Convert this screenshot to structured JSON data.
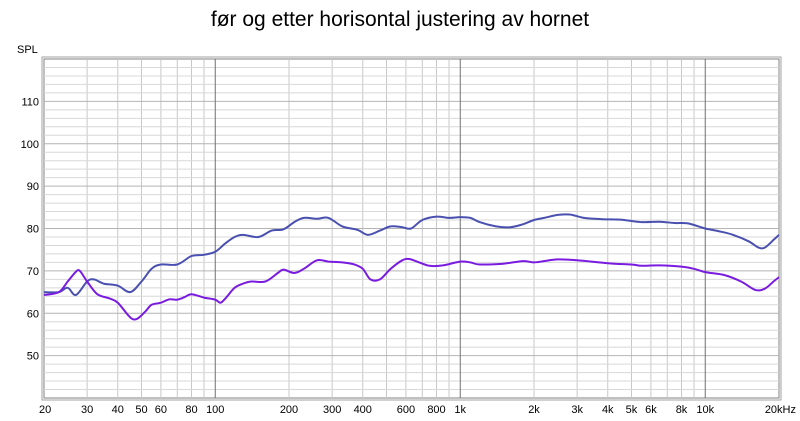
{
  "chart_data": {
    "type": "line",
    "title": "før og etter horisontal justering av hornet",
    "ylabel": "SPL",
    "xlabel": "",
    "xscale": "log",
    "xlim": [
      20,
      20000
    ],
    "ylim": [
      40,
      120
    ],
    "grid": true,
    "legend": "none",
    "x_ticks": [
      {
        "value": 20,
        "label": "20"
      },
      {
        "value": 30,
        "label": "30"
      },
      {
        "value": 40,
        "label": "40"
      },
      {
        "value": 50,
        "label": "50"
      },
      {
        "value": 60,
        "label": "60"
      },
      {
        "value": 80,
        "label": "80"
      },
      {
        "value": 100,
        "label": "100"
      },
      {
        "value": 200,
        "label": "200"
      },
      {
        "value": 300,
        "label": "300"
      },
      {
        "value": 400,
        "label": "400"
      },
      {
        "value": 600,
        "label": "600"
      },
      {
        "value": 800,
        "label": "800"
      },
      {
        "value": 1000,
        "label": "1k"
      },
      {
        "value": 2000,
        "label": "2k"
      },
      {
        "value": 3000,
        "label": "3k"
      },
      {
        "value": 4000,
        "label": "4k"
      },
      {
        "value": 5000,
        "label": "5k"
      },
      {
        "value": 6000,
        "label": "6k"
      },
      {
        "value": 8000,
        "label": "8k"
      },
      {
        "value": 10000,
        "label": "10k"
      },
      {
        "value": 20000,
        "label": "20kHz"
      }
    ],
    "y_ticks": [
      {
        "value": 50,
        "label": "50"
      },
      {
        "value": 60,
        "label": "60"
      },
      {
        "value": 70,
        "label": "70"
      },
      {
        "value": 80,
        "label": "80"
      },
      {
        "value": 90,
        "label": "90"
      },
      {
        "value": 100,
        "label": "100"
      },
      {
        "value": 110,
        "label": "110"
      }
    ],
    "series": [
      {
        "color": "#4a50b0",
        "points": [
          [
            20,
            65
          ],
          [
            23,
            65
          ],
          [
            25,
            66
          ],
          [
            27,
            64.3
          ],
          [
            30,
            67.5
          ],
          [
            32,
            68
          ],
          [
            35,
            67
          ],
          [
            40,
            66.5
          ],
          [
            45,
            65
          ],
          [
            50,
            67.5
          ],
          [
            55,
            70.5
          ],
          [
            60,
            71.5
          ],
          [
            70,
            71.5
          ],
          [
            80,
            73.5
          ],
          [
            90,
            73.8
          ],
          [
            100,
            74.5
          ],
          [
            110,
            76.5
          ],
          [
            120,
            78
          ],
          [
            130,
            78.5
          ],
          [
            150,
            78
          ],
          [
            170,
            79.5
          ],
          [
            190,
            79.8
          ],
          [
            210,
            81.5
          ],
          [
            230,
            82.5
          ],
          [
            260,
            82.3
          ],
          [
            290,
            82.5
          ],
          [
            330,
            80.5
          ],
          [
            380,
            79.7
          ],
          [
            420,
            78.5
          ],
          [
            470,
            79.5
          ],
          [
            520,
            80.5
          ],
          [
            580,
            80.3
          ],
          [
            630,
            80
          ],
          [
            700,
            82
          ],
          [
            800,
            82.8
          ],
          [
            900,
            82.5
          ],
          [
            1000,
            82.7
          ],
          [
            1100,
            82.5
          ],
          [
            1200,
            81.5
          ],
          [
            1400,
            80.5
          ],
          [
            1600,
            80.3
          ],
          [
            1800,
            81
          ],
          [
            2000,
            82
          ],
          [
            2200,
            82.5
          ],
          [
            2500,
            83.2
          ],
          [
            2800,
            83.3
          ],
          [
            3200,
            82.5
          ],
          [
            3800,
            82.2
          ],
          [
            4500,
            82.1
          ],
          [
            5500,
            81.5
          ],
          [
            6500,
            81.6
          ],
          [
            7500,
            81.3
          ],
          [
            8500,
            81.2
          ],
          [
            10000,
            80
          ],
          [
            11500,
            79.3
          ],
          [
            13000,
            78.5
          ],
          [
            15000,
            77
          ],
          [
            16500,
            75.5
          ],
          [
            17500,
            75.5
          ],
          [
            19000,
            77.3
          ],
          [
            20000,
            78.5
          ]
        ]
      },
      {
        "color": "#7a1be0",
        "points": [
          [
            20,
            64.3
          ],
          [
            23,
            65
          ],
          [
            25,
            67.5
          ],
          [
            27,
            69.8
          ],
          [
            28,
            70
          ],
          [
            30,
            67.5
          ],
          [
            33,
            64.5
          ],
          [
            37,
            63.5
          ],
          [
            40,
            62.5
          ],
          [
            45,
            59
          ],
          [
            48,
            58.7
          ],
          [
            52,
            60.5
          ],
          [
            55,
            62
          ],
          [
            60,
            62.5
          ],
          [
            65,
            63.3
          ],
          [
            70,
            63.2
          ],
          [
            75,
            63.8
          ],
          [
            80,
            64.5
          ],
          [
            90,
            63.7
          ],
          [
            100,
            63.2
          ],
          [
            105,
            62.5
          ],
          [
            110,
            63.5
          ],
          [
            120,
            66
          ],
          [
            130,
            67
          ],
          [
            140,
            67.5
          ],
          [
            160,
            67.5
          ],
          [
            180,
            69.5
          ],
          [
            190,
            70.3
          ],
          [
            210,
            69.5
          ],
          [
            230,
            70.5
          ],
          [
            260,
            72.5
          ],
          [
            290,
            72.2
          ],
          [
            330,
            72
          ],
          [
            370,
            71.5
          ],
          [
            400,
            70.5
          ],
          [
            430,
            68
          ],
          [
            470,
            68
          ],
          [
            520,
            70.5
          ],
          [
            580,
            72.5
          ],
          [
            620,
            72.8
          ],
          [
            680,
            72
          ],
          [
            750,
            71.2
          ],
          [
            850,
            71.3
          ],
          [
            1000,
            72.2
          ],
          [
            1100,
            72
          ],
          [
            1200,
            71.5
          ],
          [
            1500,
            71.7
          ],
          [
            1800,
            72.3
          ],
          [
            2000,
            72
          ],
          [
            2200,
            72.3
          ],
          [
            2500,
            72.7
          ],
          [
            3000,
            72.5
          ],
          [
            4000,
            71.8
          ],
          [
            5000,
            71.5
          ],
          [
            5500,
            71.2
          ],
          [
            6500,
            71.3
          ],
          [
            8000,
            71
          ],
          [
            9000,
            70.5
          ],
          [
            10000,
            69.7
          ],
          [
            12000,
            69
          ],
          [
            14000,
            67.5
          ],
          [
            16000,
            65.5
          ],
          [
            17500,
            65.8
          ],
          [
            19000,
            67.5
          ],
          [
            20000,
            68.5
          ]
        ]
      }
    ]
  }
}
